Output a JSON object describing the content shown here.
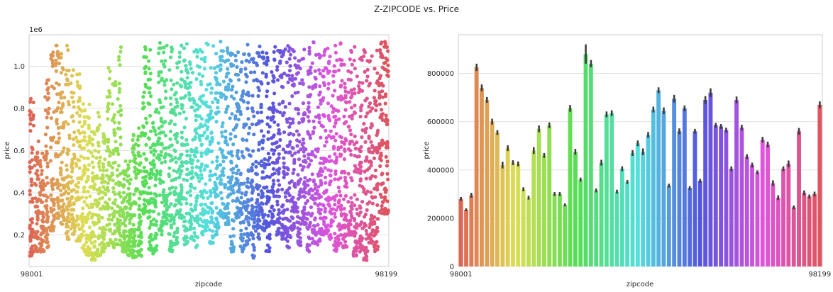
{
  "figure": {
    "title": "Z-ZIPCODE vs. Price",
    "background": "#ffffff",
    "panel_background": "#eaeaf2",
    "grid_color": "#e0e0e0"
  },
  "chart_data": [
    {
      "type": "scatter",
      "style": "strip plot",
      "xlabel": "zipcode",
      "ylabel": "price",
      "y_offset_label": "1e6",
      "ylim": [
        0.05,
        1.15
      ],
      "yticks": [
        0.2,
        0.4,
        0.6,
        0.8,
        1.0
      ],
      "ytick_labels": [
        "0.2",
        "0.4",
        "0.6",
        "0.8",
        "1.0"
      ],
      "grid": true,
      "x_ticks_first": "98001",
      "x_ticks_last": "98199",
      "category_count": 70,
      "category_ranges": [
        [
          0.1,
          0.85
        ],
        [
          0.12,
          0.65
        ],
        [
          0.12,
          0.62
        ],
        [
          0.14,
          0.95
        ],
        [
          0.22,
          1.1
        ],
        [
          0.28,
          1.12
        ],
        [
          0.25,
          1.1
        ],
        [
          0.18,
          1.12
        ],
        [
          0.2,
          1.0
        ],
        [
          0.17,
          0.98
        ],
        [
          0.12,
          0.85
        ],
        [
          0.1,
          0.82
        ],
        [
          0.08,
          0.72
        ],
        [
          0.1,
          0.78
        ],
        [
          0.12,
          0.7
        ],
        [
          0.15,
          1.02
        ],
        [
          0.14,
          0.95
        ],
        [
          0.15,
          1.12
        ],
        [
          0.12,
          0.6
        ],
        [
          0.1,
          0.57
        ],
        [
          0.09,
          0.68
        ],
        [
          0.1,
          0.75
        ],
        [
          0.3,
          1.1
        ],
        [
          0.12,
          1.08
        ],
        [
          0.11,
          0.8
        ],
        [
          0.2,
          1.12
        ],
        [
          0.25,
          1.1
        ],
        [
          0.12,
          1.12
        ],
        [
          0.15,
          1.05
        ],
        [
          0.28,
          1.1
        ],
        [
          0.15,
          1.12
        ],
        [
          0.18,
          1.1
        ],
        [
          0.14,
          1.08
        ],
        [
          0.2,
          1.1
        ],
        [
          0.22,
          1.12
        ],
        [
          0.16,
          1.1
        ],
        [
          0.2,
          1.1
        ],
        [
          0.28,
          1.12
        ],
        [
          0.25,
          1.1
        ],
        [
          0.12,
          1.12
        ],
        [
          0.28,
          1.1
        ],
        [
          0.12,
          1.08
        ],
        [
          0.15,
          1.12
        ],
        [
          0.09,
          1.1
        ],
        [
          0.18,
          1.1
        ],
        [
          0.22,
          1.08
        ],
        [
          0.12,
          1.1
        ],
        [
          0.25,
          1.12
        ],
        [
          0.2,
          1.1
        ],
        [
          0.18,
          1.1
        ],
        [
          0.14,
          1.12
        ],
        [
          0.22,
          1.1
        ],
        [
          0.15,
          1.08
        ],
        [
          0.25,
          1.1
        ],
        [
          0.12,
          1.1
        ],
        [
          0.16,
          1.12
        ],
        [
          0.15,
          1.08
        ],
        [
          0.2,
          1.1
        ],
        [
          0.18,
          1.1
        ],
        [
          0.12,
          1.1
        ],
        [
          0.15,
          1.12
        ],
        [
          0.14,
          1.08
        ],
        [
          0.2,
          1.1
        ],
        [
          0.1,
          1.1
        ],
        [
          0.12,
          1.12
        ],
        [
          0.08,
          1.1
        ],
        [
          0.16,
          1.1
        ],
        [
          0.12,
          1.08
        ],
        [
          0.3,
          1.12
        ],
        [
          0.3,
          1.12
        ]
      ]
    },
    {
      "type": "bar",
      "xlabel": "zipcode",
      "ylabel": "price",
      "ylim": [
        0,
        960000
      ],
      "yticks": [
        0,
        200000,
        400000,
        600000,
        800000
      ],
      "ytick_labels": [
        "0",
        "200000",
        "400000",
        "600000",
        "800000"
      ],
      "grid": true,
      "x_ticks_first": "98001",
      "x_ticks_last": "98199",
      "values": [
        280000,
        235000,
        295000,
        825000,
        740000,
        690000,
        600000,
        555000,
        420000,
        490000,
        430000,
        425000,
        320000,
        285000,
        480000,
        570000,
        460000,
        585000,
        300000,
        300000,
        255000,
        655000,
        475000,
        360000,
        880000,
        840000,
        315000,
        430000,
        630000,
        635000,
        310000,
        405000,
        350000,
        470000,
        510000,
        475000,
        545000,
        650000,
        730000,
        645000,
        335000,
        695000,
        560000,
        655000,
        325000,
        560000,
        355000,
        690000,
        720000,
        585000,
        580000,
        565000,
        405000,
        690000,
        575000,
        455000,
        420000,
        390000,
        525000,
        505000,
        345000,
        285000,
        405000,
        425000,
        245000,
        560000,
        305000,
        290000,
        300000,
        670000
      ],
      "error_half_widths": [
        8000,
        6000,
        10000,
        15000,
        14000,
        12000,
        12000,
        10000,
        14000,
        12000,
        10000,
        10000,
        8000,
        8000,
        14000,
        14000,
        10000,
        12000,
        8000,
        8000,
        6000,
        14000,
        12000,
        8000,
        40000,
        15000,
        8000,
        12000,
        12000,
        12000,
        8000,
        10000,
        8000,
        12000,
        12000,
        14000,
        12000,
        12000,
        12000,
        14000,
        8000,
        16000,
        12000,
        12000,
        8000,
        10000,
        8000,
        16000,
        18000,
        10000,
        10000,
        10000,
        10000,
        14000,
        12000,
        10000,
        10000,
        8000,
        12000,
        12000,
        12000,
        10000,
        10000,
        14000,
        8000,
        14000,
        10000,
        8000,
        10000,
        14000
      ]
    }
  ]
}
